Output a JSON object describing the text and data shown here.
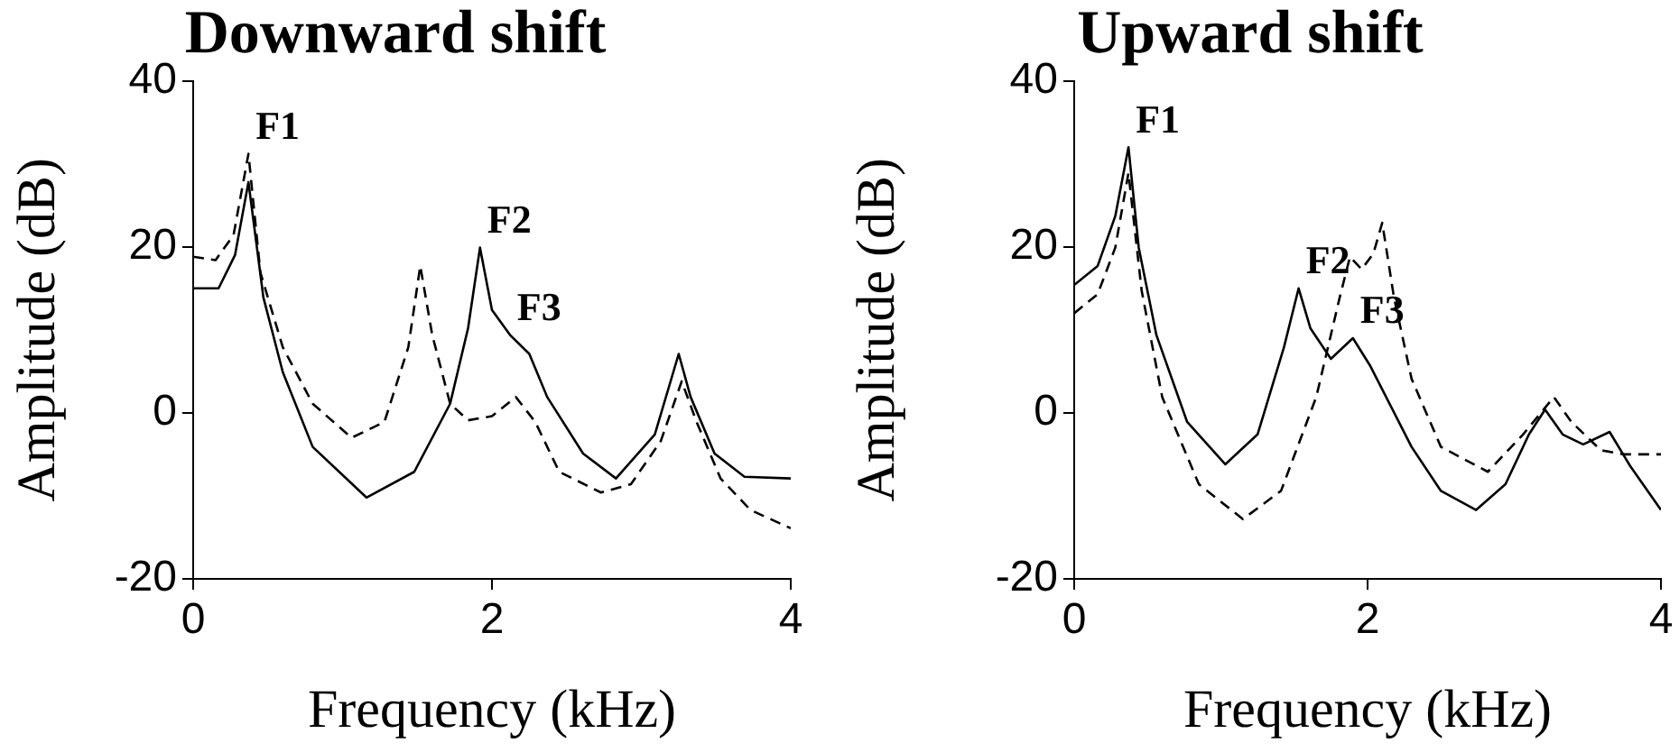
{
  "chart_data": [
    {
      "type": "line",
      "title": "Downward shift",
      "xlabel": "Frequency (kHz)",
      "ylabel": "Amplitude (dB)",
      "xlim": [
        0,
        4
      ],
      "xticks": [
        0,
        2,
        4
      ],
      "ylim": [
        -20,
        40
      ],
      "yticks": [
        -20,
        0,
        20,
        40
      ],
      "grid": false,
      "legend": false,
      "marker": "none",
      "series": [
        {
          "color": "#000000",
          "line_style": "solid",
          "x": [
            0,
            0.17,
            0.28,
            0.37,
            0.47,
            0.6,
            0.8,
            1.16,
            1.48,
            1.72,
            1.84,
            1.92,
            2.0,
            2.12,
            2.25,
            2.37,
            2.61,
            2.83,
            3.09,
            3.25,
            3.33,
            3.49,
            3.69,
            4.0
          ],
          "values": [
            15,
            15,
            19,
            27.8,
            13.9,
            4.9,
            -4.1,
            -10.2,
            -7.1,
            1.1,
            10.2,
            19.9,
            12.4,
            9.4,
            7.1,
            1.9,
            -4.9,
            -7.9,
            -2.6,
            7.1,
            1.9,
            -4.9,
            -7.7,
            -7.9
          ]
        },
        {
          "color": "#000000",
          "line_style": "dashed",
          "x": [
            0,
            0.15,
            0.27,
            0.37,
            0.45,
            0.6,
            0.8,
            1.06,
            1.28,
            1.44,
            1.52,
            1.6,
            1.72,
            1.84,
            2.0,
            2.16,
            2.29,
            2.45,
            2.73,
            2.93,
            3.13,
            3.27,
            3.37,
            3.53,
            3.73,
            4.0
          ],
          "values": [
            18.8,
            18.4,
            21.4,
            31.2,
            16.9,
            7.9,
            1.1,
            -3.0,
            -1.1,
            7.9,
            17.7,
            9.4,
            1.1,
            -0.9,
            -0.4,
            1.9,
            -1.1,
            -7.1,
            -9.6,
            -8.6,
            -3.4,
            3.8,
            -1.1,
            -7.9,
            -11.7,
            -13.9
          ]
        }
      ],
      "annotations": [
        {
          "text": "F1",
          "x": 0.37,
          "y": 31.2
        },
        {
          "text": "F2",
          "x": 1.92,
          "y": 19.9
        },
        {
          "text": "F3",
          "x": 2.12,
          "y": 9.4
        }
      ]
    },
    {
      "type": "line",
      "title": "Upward shift",
      "xlabel": "Frequency (kHz)",
      "ylabel": "Amplitude (dB)",
      "xlim": [
        0,
        4
      ],
      "xticks": [
        0,
        2,
        4
      ],
      "ylim": [
        -20,
        40
      ],
      "yticks": [
        -20,
        0,
        20,
        40
      ],
      "grid": false,
      "legend": false,
      "marker": "none",
      "series": [
        {
          "color": "#000000",
          "line_style": "solid",
          "x": [
            0,
            0.16,
            0.28,
            0.37,
            0.44,
            0.56,
            0.77,
            1.03,
            1.25,
            1.43,
            1.53,
            1.61,
            1.75,
            1.9,
            2.02,
            2.3,
            2.5,
            2.74,
            2.94,
            3.1,
            3.21,
            3.33,
            3.47,
            3.65,
            3.79,
            4.0
          ],
          "values": [
            15.4,
            17.7,
            23.7,
            32,
            19.9,
            9.4,
            -1.1,
            -6.2,
            -2.6,
            7.9,
            15.0,
            10.2,
            6.5,
            9.0,
            5.6,
            -4.1,
            -9.4,
            -11.7,
            -8.6,
            -2.6,
            0.4,
            -2.6,
            -3.8,
            -2.3,
            -6.4,
            -11.7
          ]
        },
        {
          "color": "#000000",
          "line_style": "dashed",
          "x": [
            0,
            0.16,
            0.28,
            0.37,
            0.46,
            0.6,
            0.85,
            1.15,
            1.41,
            1.65,
            1.81,
            1.88,
            1.96,
            2.04,
            2.1,
            2.18,
            2.3,
            2.5,
            2.82,
            3.06,
            3.27,
            3.39,
            3.59,
            3.75,
            4.0
          ],
          "values": [
            12.0,
            14.3,
            19.9,
            28.9,
            14.7,
            1.9,
            -8.6,
            -12.8,
            -9.4,
            1.9,
            13.9,
            18.8,
            17.3,
            19.2,
            22.9,
            13.9,
            4.1,
            -4.1,
            -7.1,
            -2.6,
            1.9,
            -1.1,
            -4.5,
            -5.0,
            -5.0
          ]
        }
      ],
      "annotations": [
        {
          "text": "F1",
          "x": 0.37,
          "y": 32
        },
        {
          "text": "F2",
          "x": 1.53,
          "y": 15.0
        },
        {
          "text": "F3",
          "x": 1.9,
          "y": 9.0
        }
      ]
    }
  ]
}
